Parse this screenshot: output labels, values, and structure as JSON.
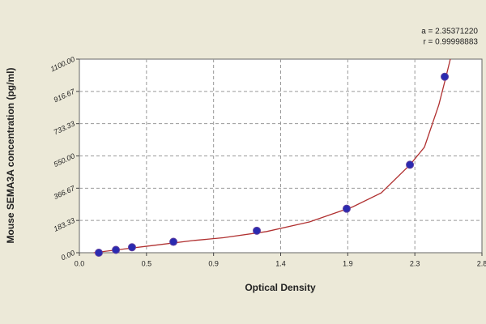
{
  "chart_data": {
    "type": "scatter",
    "x_label": "Optical Density",
    "y_label": "Mouse SEMA3A concentration (pg/ml)",
    "annotations": [
      "a = 2.35371220",
      "r = 0.99998883"
    ],
    "series": [
      {
        "color": "#2a2ab0",
        "x": [
          0.135,
          0.254,
          0.366,
          0.654,
          1.234,
          1.859,
          2.299,
          2.541
        ],
        "values": [
          0,
          16,
          31,
          62,
          125,
          250,
          500,
          1000
        ]
      },
      {
        "color": "#b03030",
        "line": true,
        "x": [
          0.1,
          0.3,
          0.5,
          0.8,
          1.0,
          1.3,
          1.6,
          1.9,
          2.1,
          2.3,
          2.4,
          2.5,
          2.55,
          2.58
        ],
        "values": [
          0,
          20,
          40,
          70,
          85,
          120,
          175,
          260,
          340,
          500,
          600,
          840,
          1000,
          1100
        ]
      }
    ],
    "xlim": [
      0,
      2.8
    ],
    "xticks": [
      {
        "value": 0,
        "label": "0.0"
      },
      {
        "value": 0.4667,
        "label": "0.5"
      },
      {
        "value": 0.9333,
        "label": "0.9"
      },
      {
        "value": 1.4,
        "label": "1.4"
      },
      {
        "value": 1.8667,
        "label": "1.9"
      },
      {
        "value": 2.3333,
        "label": "2.3"
      },
      {
        "value": 2.8,
        "label": "2.8"
      }
    ],
    "ylim": [
      0,
      1100
    ],
    "yticks": [
      {
        "value": 0,
        "label": "0.00"
      },
      {
        "value": 183.33,
        "label": "183.33"
      },
      {
        "value": 366.67,
        "label": "366.67"
      },
      {
        "value": 550,
        "label": "550.00"
      },
      {
        "value": 733.33,
        "label": "733.33"
      },
      {
        "value": 916.67,
        "label": "916.67"
      },
      {
        "value": 1100,
        "label": "1100.00"
      }
    ],
    "grid": true
  }
}
